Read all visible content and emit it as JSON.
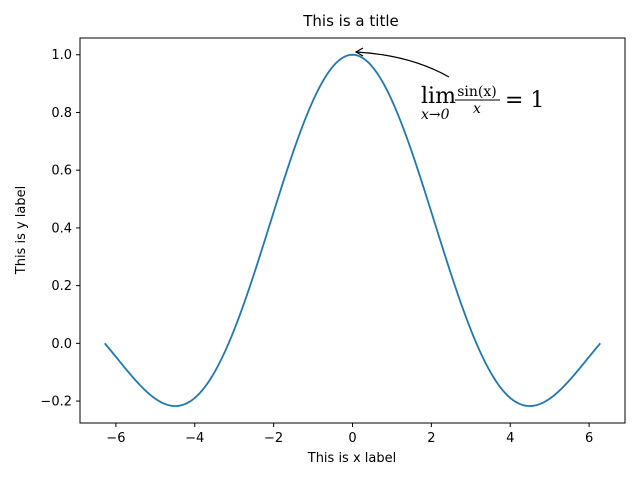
{
  "chart_data": {
    "type": "line",
    "title": "This is a title",
    "xlabel": "This is x label",
    "ylabel": "This is y label",
    "xlim": [
      -6.91,
      6.91
    ],
    "ylim": [
      -0.276,
      1.058
    ],
    "x_ticks": [
      -6,
      -4,
      -2,
      0,
      2,
      4,
      6
    ],
    "x_tick_labels": [
      "−6",
      "−4",
      "−2",
      "0",
      "2",
      "4",
      "6"
    ],
    "y_ticks": [
      -0.2,
      0.0,
      0.2,
      0.4,
      0.6,
      0.8,
      1.0
    ],
    "y_tick_labels": [
      "−0.2",
      "0.0",
      "0.2",
      "0.4",
      "0.6",
      "0.8",
      "1.0"
    ],
    "grid": false,
    "series": [
      {
        "color": "#1f77b4",
        "x_range": [
          -6.2832,
          6.2832
        ],
        "samples": 200,
        "function": "sin(x)/x"
      }
    ],
    "annotation": {
      "lim": "lim",
      "sub": "x→0",
      "numerator": "sin(x)",
      "denominator": "x",
      "rhs": "= 1",
      "points_to": [
        0,
        1.0
      ]
    }
  }
}
